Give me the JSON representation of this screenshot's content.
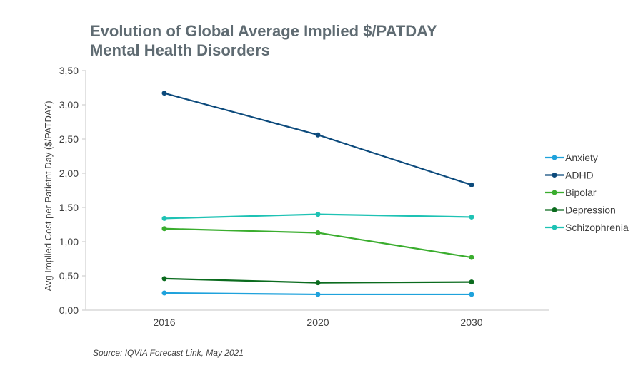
{
  "title_lines": [
    "Evolution of Global Average Implied $/PATDAY",
    "Mental Health Disorders"
  ],
  "source": "Source: IQVIA Forecast Link, May 2021",
  "chart_data": {
    "type": "line",
    "title": "Evolution of Global Average Implied $/PATDAY Mental Health Disorders",
    "xlabel": "",
    "ylabel": "Avg Implied Cost per Patietnt Day ($/PATDAY)",
    "categories": [
      "2016",
      "2020",
      "2030"
    ],
    "ylim": [
      0,
      3.5
    ],
    "yticks": [
      "0,00",
      "0,50",
      "1,00",
      "1,50",
      "2,00",
      "2,50",
      "3,00",
      "3,50"
    ],
    "grid": false,
    "legend_position": "right",
    "series": [
      {
        "name": "Anxiety",
        "color": "#1fa2dc",
        "values": [
          0.25,
          0.23,
          0.23
        ]
      },
      {
        "name": "ADHD",
        "color": "#0c4a7c",
        "values": [
          3.17,
          2.56,
          1.83
        ]
      },
      {
        "name": "Bipolar",
        "color": "#3aad2e",
        "values": [
          1.19,
          1.13,
          0.77
        ]
      },
      {
        "name": "Depression",
        "color": "#0b6b1e",
        "values": [
          0.46,
          0.4,
          0.41
        ]
      },
      {
        "name": "Schizophrenia",
        "color": "#1ec2b4",
        "values": [
          1.34,
          1.4,
          1.36
        ]
      }
    ]
  }
}
